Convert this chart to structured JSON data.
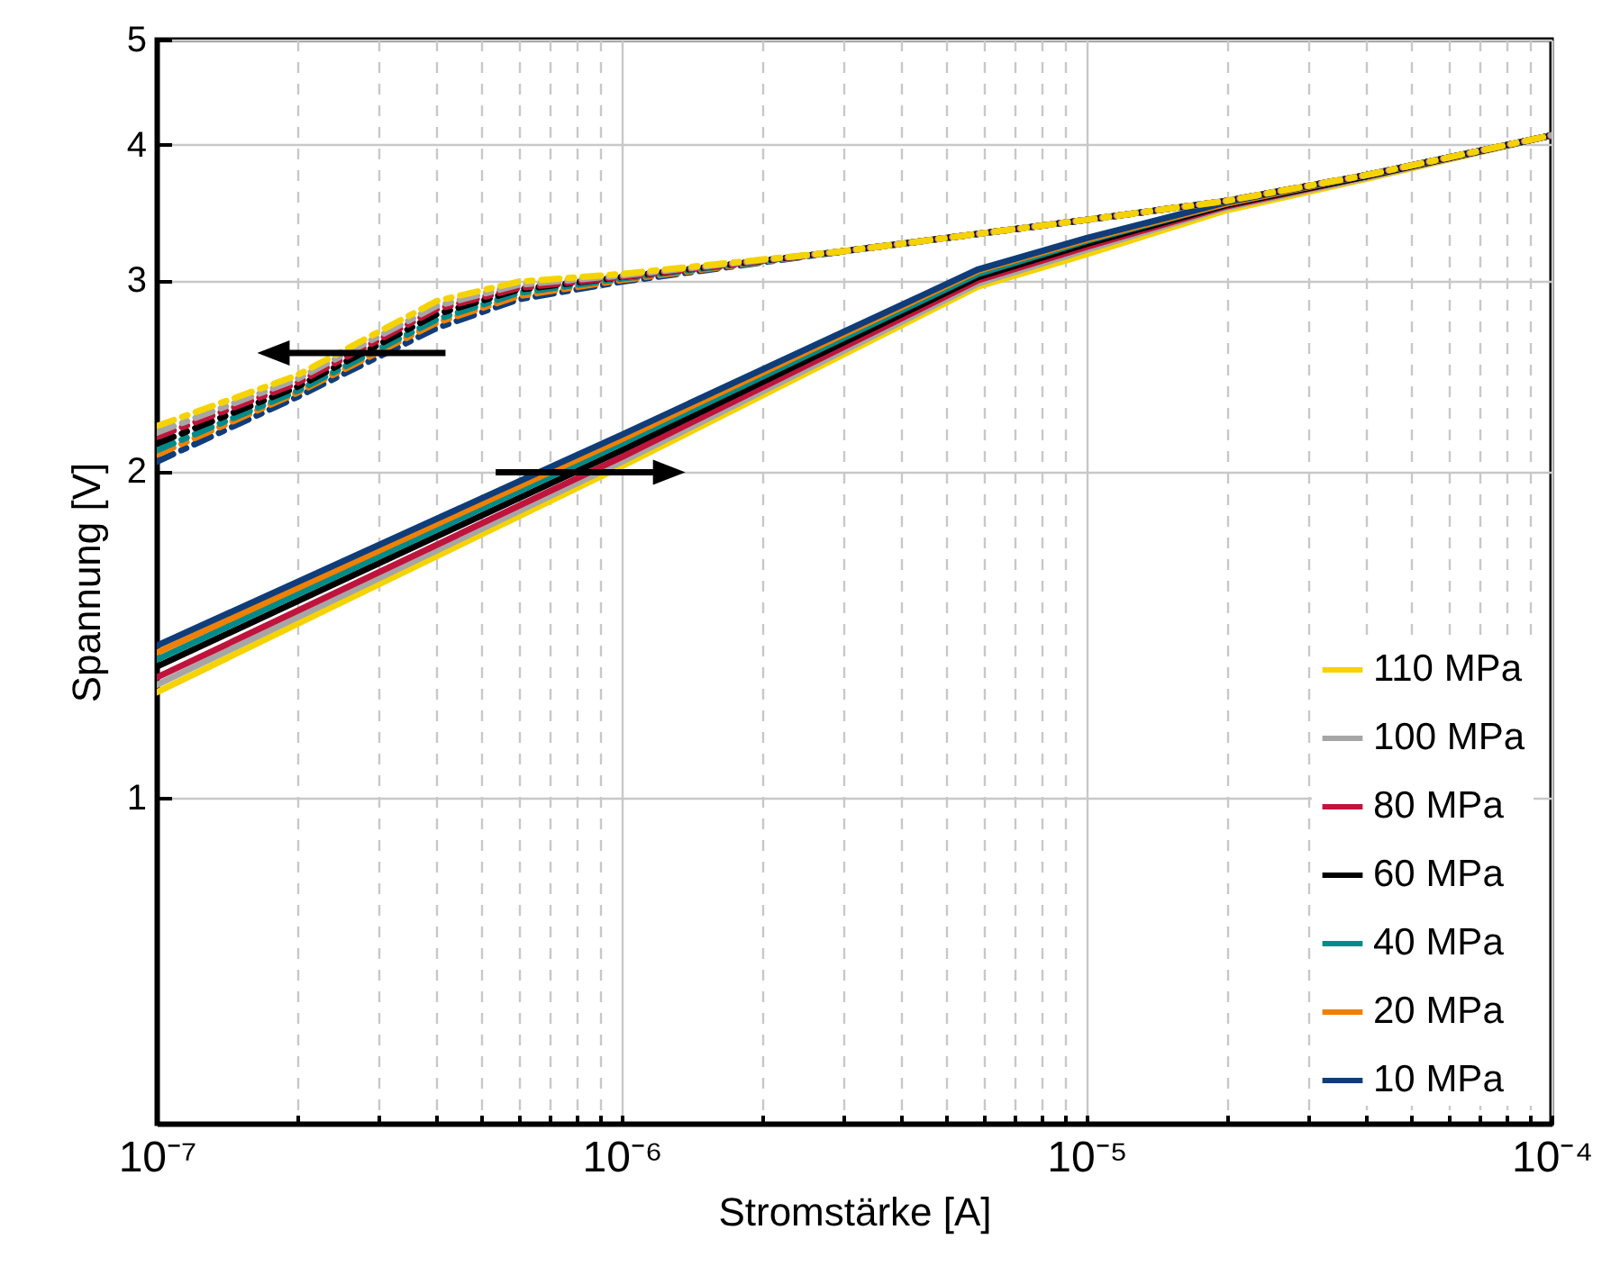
{
  "chart_data": {
    "type": "line",
    "xlabel": "Stromstärke [A]",
    "ylabel": "Spannung [V]",
    "log": "xy",
    "grid": true,
    "legend": "bottom right",
    "line_style": "solid",
    "xlim": [
      1e-07,
      0.0001
    ],
    "ylim": [
      0.5,
      5
    ],
    "xticks": [
      {
        "value": 1e-07,
        "label": "10⁻⁷"
      },
      {
        "value": 2e-07,
        "label": null
      },
      {
        "value": 3e-07,
        "label": null
      },
      {
        "value": 4e-07,
        "label": null
      },
      {
        "value": 5e-07,
        "label": null
      },
      {
        "value": 6e-07,
        "label": null
      },
      {
        "value": 7e-07,
        "label": null
      },
      {
        "value": 8e-07,
        "label": null
      },
      {
        "value": 9e-07,
        "label": null
      },
      {
        "value": 1e-06,
        "label": "10⁻⁶"
      },
      {
        "value": 2e-06,
        "label": null
      },
      {
        "value": 3e-06,
        "label": null
      },
      {
        "value": 4e-06,
        "label": null
      },
      {
        "value": 5e-06,
        "label": null
      },
      {
        "value": 6e-06,
        "label": null
      },
      {
        "value": 7e-06,
        "label": null
      },
      {
        "value": 8e-06,
        "label": null
      },
      {
        "value": 9e-06,
        "label": null
      },
      {
        "value": 1e-05,
        "label": "10⁻⁵"
      },
      {
        "value": 2e-05,
        "label": null
      },
      {
        "value": 3e-05,
        "label": null
      },
      {
        "value": 4e-05,
        "label": null
      },
      {
        "value": 5e-05,
        "label": null
      },
      {
        "value": 6e-05,
        "label": null
      },
      {
        "value": 7e-05,
        "label": null
      },
      {
        "value": 8e-05,
        "label": null
      },
      {
        "value": 9e-05,
        "label": null
      },
      {
        "value": 0.0001,
        "label": "10⁻⁴"
      }
    ],
    "yticks": [
      1,
      2,
      3,
      4,
      5
    ],
    "x": [
      1e-07,
      1e-06,
      5.85e-06,
      1e-05,
      2e-05,
      4e-05,
      0.0001
    ],
    "series": [
      {
        "name": "110 MPa",
        "color": "#f5d300",
        "values": [
          1.25,
          2.02,
          2.96,
          3.17,
          3.48,
          3.72,
          4.08
        ]
      },
      {
        "name": "100 MPa",
        "color": "#a6a6a6",
        "values": [
          1.27,
          2.04,
          2.98,
          3.2,
          3.5,
          3.73,
          4.08
        ]
      },
      {
        "name": "80 MPa",
        "color": "#c0143c",
        "values": [
          1.29,
          2.06,
          3.0,
          3.22,
          3.51,
          3.74,
          4.08
        ]
      },
      {
        "name": "60 MPa",
        "color": "#000000",
        "values": [
          1.32,
          2.09,
          3.02,
          3.24,
          3.52,
          3.74,
          4.08
        ]
      },
      {
        "name": "40 MPa",
        "color": "#008b8b",
        "values": [
          1.34,
          2.12,
          3.04,
          3.26,
          3.53,
          3.75,
          4.08
        ]
      },
      {
        "name": "20 MPa",
        "color": "#f08000",
        "values": [
          1.36,
          2.14,
          3.06,
          3.27,
          3.53,
          3.75,
          4.08
        ]
      },
      {
        "name": "10 MPa",
        "color": "#0f3d7a",
        "values": [
          1.38,
          2.16,
          3.07,
          3.28,
          3.54,
          3.75,
          4.08
        ]
      },
      {
        "color": "#0f3d7a",
        "line_style": "dashed",
        "x": [
          1e-07,
          2e-07,
          4e-07,
          6e-07,
          1e-06,
          3e-06,
          1e-05,
          2e-05,
          4e-05,
          0.0001
        ],
        "values": [
          2.04,
          2.34,
          2.71,
          2.88,
          2.99,
          3.19,
          3.41,
          3.55,
          3.75,
          4.08
        ]
      },
      {
        "color": "#f08000",
        "line_style": "dashed",
        "x": [
          1e-07,
          2e-07,
          4e-07,
          6e-07,
          1e-06,
          3e-06,
          1e-05,
          2e-05,
          4e-05,
          0.0001
        ],
        "values": [
          2.07,
          2.36,
          2.74,
          2.9,
          3.0,
          3.19,
          3.41,
          3.55,
          3.75,
          4.08
        ]
      },
      {
        "color": "#008b8b",
        "line_style": "dashed",
        "x": [
          1e-07,
          2e-07,
          4e-07,
          6e-07,
          1e-06,
          3e-06,
          1e-05,
          2e-05,
          4e-05,
          0.0001
        ],
        "values": [
          2.09,
          2.37,
          2.76,
          2.92,
          3.01,
          3.19,
          3.41,
          3.55,
          3.75,
          4.08
        ]
      },
      {
        "color": "#000000",
        "line_style": "dashed",
        "x": [
          1e-07,
          2e-07,
          4e-07,
          6e-07,
          1e-06,
          3e-06,
          1e-05,
          2e-05,
          4e-05,
          0.0001
        ],
        "values": [
          2.12,
          2.39,
          2.79,
          2.94,
          3.02,
          3.19,
          3.41,
          3.55,
          3.75,
          4.08
        ]
      },
      {
        "color": "#c0143c",
        "line_style": "dashed",
        "x": [
          1e-07,
          2e-07,
          4e-07,
          6e-07,
          1e-06,
          3e-06,
          1e-05,
          2e-05,
          4e-05,
          0.0001
        ],
        "values": [
          2.15,
          2.41,
          2.82,
          2.95,
          3.02,
          3.19,
          3.41,
          3.55,
          3.75,
          4.08
        ]
      },
      {
        "color": "#a6a6a6",
        "line_style": "dashed",
        "x": [
          1e-07,
          2e-07,
          4e-07,
          6e-07,
          1e-06,
          3e-06,
          1e-05,
          2e-05,
          4e-05,
          0.0001
        ],
        "values": [
          2.17,
          2.43,
          2.84,
          2.97,
          3.03,
          3.19,
          3.41,
          3.55,
          3.75,
          4.08
        ]
      },
      {
        "color": "#f5d300",
        "line_style": "dashed",
        "x": [
          1e-07,
          2e-07,
          4e-07,
          6e-07,
          1e-06,
          3e-06,
          1e-05,
          2e-05,
          4e-05,
          0.0001
        ],
        "values": [
          2.2,
          2.45,
          2.87,
          2.99,
          3.04,
          3.19,
          3.41,
          3.55,
          3.75,
          4.08
        ]
      }
    ]
  }
}
